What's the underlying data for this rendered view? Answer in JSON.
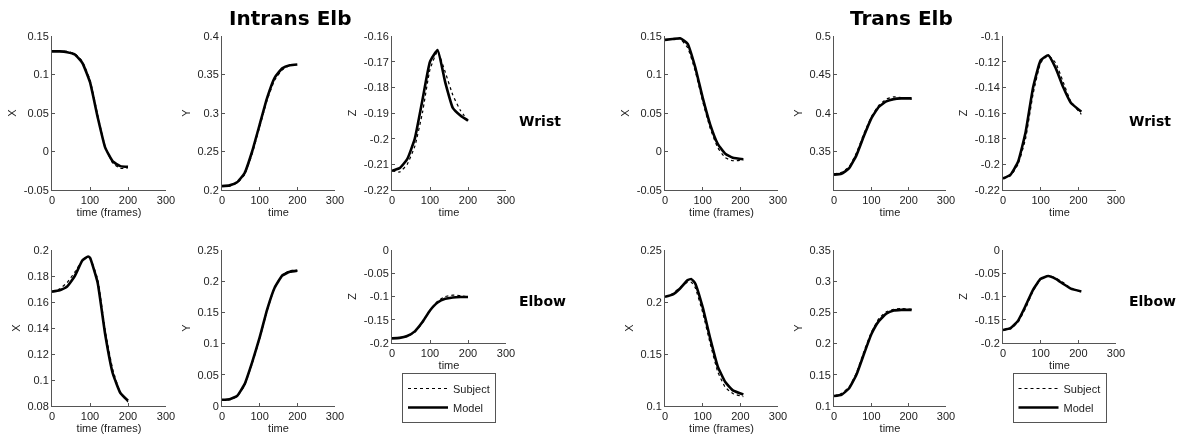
{
  "chart_data": [
    {
      "type": "line",
      "xlabel": "time (frames)",
      "ylabel": "X",
      "xlim": [
        0,
        300
      ],
      "xticks": [
        0,
        100,
        200,
        300
      ],
      "ylim": [
        -0.05,
        0.15
      ],
      "yticks": [
        -0.05,
        0,
        0.05,
        0.1,
        0.15
      ],
      "x": [
        0,
        20,
        40,
        60,
        80,
        100,
        120,
        140,
        160,
        180,
        200
      ],
      "series": [
        {
          "color": "#000000",
          "line_style": "dotted",
          "values": [
            0.13,
            0.13,
            0.13,
            0.127,
            0.117,
            0.093,
            0.048,
            0.006,
            -0.015,
            -0.022,
            -0.021
          ]
        },
        {
          "color": "#000000",
          "line_style": "solid",
          "values": [
            0.13,
            0.13,
            0.129,
            0.126,
            0.115,
            0.09,
            0.045,
            0.005,
            -0.013,
            -0.019,
            -0.02
          ]
        }
      ]
    },
    {
      "type": "line",
      "title": "Intrans Elb",
      "xlabel": "time",
      "ylabel": "Y",
      "xlim": [
        0,
        300
      ],
      "xticks": [
        0,
        100,
        200,
        300
      ],
      "ylim": [
        0.2,
        0.4
      ],
      "yticks": [
        0.2,
        0.25,
        0.3,
        0.35,
        0.4
      ],
      "x": [
        0,
        20,
        40,
        60,
        80,
        100,
        120,
        140,
        160,
        180,
        200
      ],
      "series": [
        {
          "color": "#000000",
          "line_style": "dotted",
          "values": [
            0.205,
            0.205,
            0.209,
            0.22,
            0.247,
            0.282,
            0.317,
            0.343,
            0.356,
            0.362,
            0.363
          ]
        },
        {
          "color": "#000000",
          "line_style": "solid",
          "values": [
            0.205,
            0.206,
            0.21,
            0.222,
            0.25,
            0.285,
            0.32,
            0.346,
            0.358,
            0.362,
            0.363
          ]
        }
      ]
    },
    {
      "type": "line",
      "xlabel": "time",
      "ylabel": "Z",
      "annotations": [
        "Wrist"
      ],
      "xlim": [
        0,
        300
      ],
      "xticks": [
        0,
        100,
        200,
        300
      ],
      "ylim": [
        -0.22,
        -0.16
      ],
      "yticks": [
        -0.22,
        -0.21,
        -0.2,
        -0.19,
        -0.18,
        -0.17,
        -0.16
      ],
      "x": [
        0,
        20,
        40,
        60,
        80,
        100,
        120,
        140,
        160,
        180,
        200
      ],
      "series": [
        {
          "color": "#000000",
          "line_style": "dotted",
          "values": [
            -0.2125,
            -0.213,
            -0.21,
            -0.203,
            -0.19,
            -0.173,
            -0.166,
            -0.174,
            -0.183,
            -0.189,
            -0.193
          ]
        },
        {
          "color": "#000000",
          "line_style": "solid",
          "values": [
            -0.2125,
            -0.2115,
            -0.208,
            -0.2,
            -0.185,
            -0.17,
            -0.1655,
            -0.178,
            -0.188,
            -0.191,
            -0.193
          ]
        }
      ]
    },
    {
      "type": "line",
      "xlabel": "time (frames)",
      "ylabel": "X",
      "xlim": [
        0,
        300
      ],
      "xticks": [
        0,
        100,
        200,
        300
      ],
      "ylim": [
        0.08,
        0.2
      ],
      "yticks": [
        0.08,
        0.1,
        0.12,
        0.14,
        0.16,
        0.18,
        0.2
      ],
      "x": [
        0,
        20,
        40,
        60,
        80,
        95,
        100,
        120,
        140,
        160,
        180,
        200
      ],
      "series": [
        {
          "color": "#000000",
          "line_style": "dotted",
          "values": [
            0.168,
            0.17,
            0.175,
            0.183,
            0.192,
            0.195,
            0.194,
            0.178,
            0.138,
            0.108,
            0.09,
            0.083
          ]
        },
        {
          "color": "#000000",
          "line_style": "solid",
          "values": [
            0.168,
            0.169,
            0.172,
            0.18,
            0.192,
            0.195,
            0.194,
            0.175,
            0.135,
            0.105,
            0.09,
            0.084
          ]
        }
      ]
    },
    {
      "type": "line",
      "xlabel": "time",
      "ylabel": "Y",
      "xlim": [
        0,
        300
      ],
      "xticks": [
        0,
        100,
        200,
        300
      ],
      "ylim": [
        0,
        0.25
      ],
      "yticks": [
        0,
        0.05,
        0.1,
        0.15,
        0.2,
        0.25
      ],
      "x": [
        0,
        20,
        40,
        60,
        80,
        100,
        120,
        140,
        160,
        180,
        200
      ],
      "series": [
        {
          "color": "#000000",
          "line_style": "dotted",
          "values": [
            0.01,
            0.01,
            0.015,
            0.033,
            0.068,
            0.108,
            0.153,
            0.19,
            0.21,
            0.217,
            0.217
          ]
        },
        {
          "color": "#000000",
          "line_style": "solid",
          "values": [
            0.01,
            0.011,
            0.016,
            0.035,
            0.07,
            0.11,
            0.155,
            0.19,
            0.209,
            0.215,
            0.217
          ]
        }
      ]
    },
    {
      "type": "line",
      "xlabel": "time",
      "ylabel": "Z",
      "annotations": [
        "Elbow"
      ],
      "legend": "bottom",
      "xlim": [
        0,
        300
      ],
      "xticks": [
        0,
        100,
        200,
        300
      ],
      "ylim": [
        -0.2,
        0
      ],
      "yticks": [
        -0.2,
        -0.15,
        -0.1,
        -0.05,
        0
      ],
      "x": [
        0,
        20,
        40,
        60,
        80,
        100,
        120,
        140,
        160,
        180,
        200
      ],
      "series": [
        {
          "name": "Subject",
          "color": "#000000",
          "line_style": "dotted",
          "values": [
            -0.19,
            -0.19,
            -0.186,
            -0.177,
            -0.157,
            -0.13,
            -0.11,
            -0.1,
            -0.097,
            -0.098,
            -0.101
          ]
        },
        {
          "name": "Model",
          "color": "#000000",
          "line_style": "solid",
          "values": [
            -0.19,
            -0.189,
            -0.185,
            -0.175,
            -0.155,
            -0.13,
            -0.113,
            -0.105,
            -0.102,
            -0.101,
            -0.101
          ]
        }
      ]
    },
    {
      "type": "line",
      "xlabel": "time (frames)",
      "ylabel": "X",
      "xlim": [
        0,
        300
      ],
      "xticks": [
        0,
        100,
        200,
        300
      ],
      "ylim": [
        -0.05,
        0.15
      ],
      "yticks": [
        -0.05,
        0,
        0.05,
        0.1,
        0.15
      ],
      "x": [
        0,
        20,
        40,
        60,
        80,
        100,
        120,
        140,
        160,
        180,
        208
      ],
      "series": [
        {
          "color": "#000000",
          "line_style": "dotted",
          "values": [
            0.145,
            0.146,
            0.146,
            0.135,
            0.105,
            0.065,
            0.03,
            0.005,
            -0.008,
            -0.012,
            -0.011
          ]
        },
        {
          "color": "#000000",
          "line_style": "solid",
          "values": [
            0.145,
            0.146,
            0.147,
            0.14,
            0.11,
            0.07,
            0.035,
            0.01,
            -0.003,
            -0.008,
            -0.01
          ]
        }
      ]
    },
    {
      "type": "line",
      "title": "Trans Elb",
      "xlabel": "time",
      "ylabel": "Y",
      "xlim": [
        0,
        300
      ],
      "xticks": [
        0,
        100,
        200,
        300
      ],
      "ylim": [
        0.3,
        0.5
      ],
      "yticks": [
        0.35,
        0.4,
        0.45,
        0.5
      ],
      "x": [
        0,
        20,
        40,
        60,
        80,
        100,
        120,
        140,
        160,
        180,
        208
      ],
      "series": [
        {
          "color": "#000000",
          "line_style": "dotted",
          "values": [
            0.321,
            0.323,
            0.33,
            0.348,
            0.373,
            0.395,
            0.41,
            0.418,
            0.421,
            0.42,
            0.418
          ]
        },
        {
          "color": "#000000",
          "line_style": "solid",
          "values": [
            0.32,
            0.321,
            0.328,
            0.345,
            0.37,
            0.393,
            0.408,
            0.415,
            0.418,
            0.419,
            0.419
          ]
        }
      ]
    },
    {
      "type": "line",
      "xlabel": "time",
      "ylabel": "Z",
      "annotations": [
        "Wrist"
      ],
      "xlim": [
        0,
        300
      ],
      "xticks": [
        0,
        100,
        200,
        300
      ],
      "ylim": [
        -0.22,
        -0.1
      ],
      "yticks": [
        -0.22,
        -0.2,
        -0.18,
        -0.16,
        -0.14,
        -0.12,
        -0.1
      ],
      "x": [
        0,
        20,
        40,
        60,
        80,
        100,
        120,
        140,
        160,
        180,
        208
      ],
      "series": [
        {
          "color": "#000000",
          "line_style": "dotted",
          "values": [
            -0.211,
            -0.209,
            -0.2,
            -0.18,
            -0.145,
            -0.121,
            -0.115,
            -0.121,
            -0.136,
            -0.151,
            -0.161
          ]
        },
        {
          "color": "#000000",
          "line_style": "solid",
          "values": [
            -0.211,
            -0.208,
            -0.198,
            -0.175,
            -0.14,
            -0.119,
            -0.115,
            -0.125,
            -0.14,
            -0.152,
            -0.159
          ]
        }
      ]
    },
    {
      "type": "line",
      "xlabel": "time (frames)",
      "ylabel": "X",
      "xlim": [
        0,
        300
      ],
      "xticks": [
        0,
        100,
        200,
        300
      ],
      "ylim": [
        0.1,
        0.25
      ],
      "yticks": [
        0.1,
        0.15,
        0.2,
        0.25
      ],
      "x": [
        0,
        20,
        40,
        60,
        70,
        80,
        100,
        120,
        140,
        160,
        180,
        208
      ],
      "series": [
        {
          "color": "#000000",
          "line_style": "dotted",
          "values": [
            0.205,
            0.208,
            0.214,
            0.219,
            0.219,
            0.214,
            0.19,
            0.16,
            0.133,
            0.118,
            0.112,
            0.109
          ]
        },
        {
          "color": "#000000",
          "line_style": "solid",
          "values": [
            0.205,
            0.207,
            0.213,
            0.221,
            0.222,
            0.218,
            0.195,
            0.165,
            0.138,
            0.123,
            0.115,
            0.111
          ]
        }
      ]
    },
    {
      "type": "line",
      "xlabel": "time",
      "ylabel": "Y",
      "xlim": [
        0,
        300
      ],
      "xticks": [
        0,
        100,
        200,
        300
      ],
      "ylim": [
        0.1,
        0.35
      ],
      "yticks": [
        0.1,
        0.15,
        0.2,
        0.25,
        0.3,
        0.35
      ],
      "x": [
        0,
        20,
        40,
        60,
        80,
        100,
        120,
        140,
        160,
        180,
        208
      ],
      "series": [
        {
          "color": "#000000",
          "line_style": "dotted",
          "values": [
            0.116,
            0.12,
            0.13,
            0.153,
            0.187,
            0.218,
            0.24,
            0.251,
            0.255,
            0.256,
            0.255
          ]
        },
        {
          "color": "#000000",
          "line_style": "solid",
          "values": [
            0.116,
            0.118,
            0.128,
            0.15,
            0.183,
            0.215,
            0.236,
            0.248,
            0.253,
            0.254,
            0.254
          ]
        }
      ]
    },
    {
      "type": "line",
      "xlabel": "time",
      "ylabel": "Z",
      "annotations": [
        "Elbow"
      ],
      "legend": "bottom",
      "xlim": [
        0,
        300
      ],
      "xticks": [
        0,
        100,
        200,
        300
      ],
      "ylim": [
        -0.2,
        0
      ],
      "yticks": [
        -0.2,
        -0.15,
        -0.1,
        -0.05,
        0
      ],
      "x": [
        0,
        20,
        40,
        60,
        80,
        100,
        120,
        140,
        160,
        180,
        208
      ],
      "series": [
        {
          "name": "Subject",
          "color": "#000000",
          "line_style": "dotted",
          "values": [
            -0.172,
            -0.17,
            -0.155,
            -0.125,
            -0.088,
            -0.063,
            -0.055,
            -0.06,
            -0.07,
            -0.082,
            -0.09
          ]
        },
        {
          "name": "Model",
          "color": "#000000",
          "line_style": "solid",
          "values": [
            -0.172,
            -0.168,
            -0.152,
            -0.12,
            -0.085,
            -0.062,
            -0.056,
            -0.062,
            -0.073,
            -0.083,
            -0.089
          ]
        }
      ]
    }
  ]
}
